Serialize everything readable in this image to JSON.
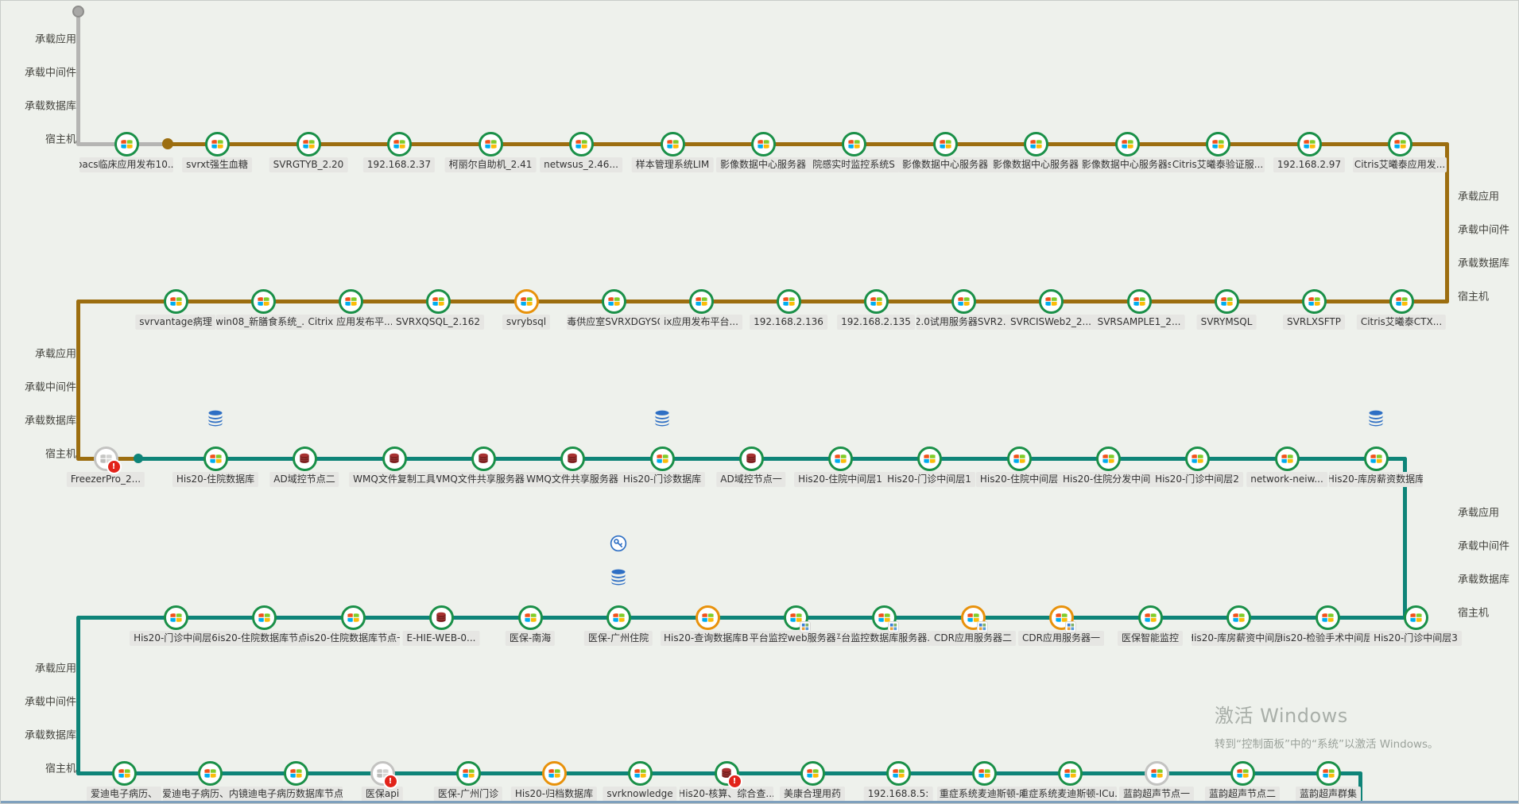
{
  "colors": {
    "bg": "#eef1ec",
    "brown": "#9c6e10",
    "teal": "#0e8478",
    "gray_line": "#b5b5b3",
    "green_ring": "#1a9048",
    "orange_ring": "#e8920c",
    "gray_ring": "#c3c3c1",
    "maroon_db": "#7d1d1d",
    "blue_icon": "#2e6fc4",
    "badge_red": "#e2231a",
    "chip_bg": "#e6e6e3",
    "chip_text": "#333333",
    "band_text": "#45453f",
    "watermark_text": "#a9afa9"
  },
  "band_labels": [
    "承载应用",
    "承载中间件",
    "承载数据库",
    "宿主机"
  ],
  "watermark": {
    "line1": "激活 Windows",
    "line2": "转到“控制面板”中的“系统”以激活 Windows。"
  },
  "rows": [
    {
      "name": "row-1",
      "line_color": "brown",
      "nodes": [
        {
          "label": "pacs临床应用发布10...",
          "icon": "windows",
          "ring": "green"
        },
        {
          "label": "svrxt强生血糖",
          "icon": "windows",
          "ring": "green"
        },
        {
          "label": "SVRGTYB_2.20",
          "icon": "windows",
          "ring": "green"
        },
        {
          "label": "192.168.2.37",
          "icon": "windows",
          "ring": "green"
        },
        {
          "label": "柯丽尔自助机_2.41",
          "icon": "windows",
          "ring": "green"
        },
        {
          "label": "netwsus_2.46...",
          "icon": "windows",
          "ring": "green"
        },
        {
          "label": "样本管理系统LIM",
          "icon": "windows",
          "ring": "green"
        },
        {
          "label": "影像数据中心服务器",
          "icon": "windows",
          "ring": "green"
        },
        {
          "label": "院感实时监控系统S",
          "icon": "windows",
          "ring": "green"
        },
        {
          "label": "影像数据中心服务器",
          "icon": "windows",
          "ring": "green"
        },
        {
          "label": "影像数据中心服务器",
          "icon": "windows",
          "ring": "green"
        },
        {
          "label": "影像数据中心服务器s",
          "icon": "windows",
          "ring": "green"
        },
        {
          "label": "Citris艾曦泰验证服...",
          "icon": "windows",
          "ring": "green"
        },
        {
          "label": "192.168.2.97",
          "icon": "windows",
          "ring": "green"
        },
        {
          "label": "Citris艾曦泰应用发...",
          "icon": "windows",
          "ring": "green"
        }
      ]
    },
    {
      "name": "row-2",
      "line_color": "brown",
      "nodes": [
        {
          "label": "svrvantage病理",
          "icon": "windows",
          "ring": "green"
        },
        {
          "label": "win08_新膳食系统_...",
          "icon": "windows",
          "ring": "green"
        },
        {
          "label": "Citrix 应用发布平...",
          "icon": "windows",
          "ring": "green"
        },
        {
          "label": "SVRXQSQL_2.162",
          "icon": "windows",
          "ring": "green"
        },
        {
          "label": "svrybsql",
          "icon": "windows",
          "ring": "orange"
        },
        {
          "label": "消毒供应室SVRXDGYSQL",
          "icon": "windows",
          "ring": "green"
        },
        {
          "label": "ix应用发布平台...",
          "icon": "windows",
          "ring": "green"
        },
        {
          "label": "192.168.2.136",
          "icon": "windows",
          "ring": "green"
        },
        {
          "label": "192.168.2.135",
          "icon": "windows",
          "ring": "green"
        },
        {
          "label": "2.0试用服务器SVR2...",
          "icon": "windows",
          "ring": "green"
        },
        {
          "label": "SVRCISWeb2_2...",
          "icon": "windows",
          "ring": "green"
        },
        {
          "label": "SVRSAMPLE1_2...",
          "icon": "windows",
          "ring": "green"
        },
        {
          "label": "SVRYMSQL",
          "icon": "windows",
          "ring": "green"
        },
        {
          "label": "SVRLXSFTP",
          "icon": "windows",
          "ring": "green"
        },
        {
          "label": "Citris艾曦泰CTX...",
          "icon": "windows",
          "ring": "green"
        }
      ]
    },
    {
      "name": "row-3",
      "line_color": "teal",
      "nodes": [
        {
          "label": "FreezerPro_2...",
          "icon": "windows-gray",
          "ring": "gray",
          "badge": true
        },
        {
          "label": "His20-住院数据库",
          "icon": "windows",
          "ring": "green",
          "above": [
            "database"
          ]
        },
        {
          "label": "AD域控节点二",
          "icon": "red-db",
          "ring": "green"
        },
        {
          "label": "WMQ文件复制工具",
          "icon": "red-db",
          "ring": "green"
        },
        {
          "label": "WMQ文件共享服务器（",
          "icon": "red-db",
          "ring": "green"
        },
        {
          "label": "WMQ文件共享服务器",
          "icon": "red-db",
          "ring": "green"
        },
        {
          "label": "His20-门诊数据库",
          "icon": "windows",
          "ring": "green",
          "above": [
            "database"
          ]
        },
        {
          "label": "AD域控节点一",
          "icon": "red-db",
          "ring": "green"
        },
        {
          "label": "His20-住院中间层1",
          "icon": "windows",
          "ring": "green"
        },
        {
          "label": "His20-门诊中间层1",
          "icon": "windows",
          "ring": "green"
        },
        {
          "label": "His20-住院中间层",
          "icon": "windows",
          "ring": "green"
        },
        {
          "label": "His20-住院分发中间.",
          "icon": "windows",
          "ring": "green"
        },
        {
          "label": "His20-门诊中间层2",
          "icon": "windows",
          "ring": "green"
        },
        {
          "label": "network-neiw...",
          "icon": "windows",
          "ring": "green"
        },
        {
          "label": "His20-库房薪资数据库",
          "icon": "windows",
          "ring": "green",
          "above": [
            "database"
          ]
        }
      ]
    },
    {
      "name": "row-4",
      "line_color": "teal",
      "nodes": [
        {
          "label": "His20-门诊中间层6",
          "icon": "windows",
          "ring": "green"
        },
        {
          "label": "His20-住院数据库节点二",
          "icon": "windows",
          "ring": "green"
        },
        {
          "label": "His20-住院数据库节点一",
          "icon": "windows",
          "ring": "green"
        },
        {
          "label": "E-HIE-WEB-0...",
          "icon": "red-db",
          "ring": "green"
        },
        {
          "label": "医保-南海",
          "icon": "windows",
          "ring": "green"
        },
        {
          "label": "医保-广州住院",
          "icon": "windows",
          "ring": "green",
          "above": [
            "key",
            "database"
          ]
        },
        {
          "label": "His20-查询数据库BI",
          "icon": "windows",
          "ring": "orange"
        },
        {
          "label": "平台监控web服务器1",
          "icon": "windows",
          "ring": "green",
          "overlay": true
        },
        {
          "label": "平台监控数据库服务器...",
          "icon": "windows",
          "ring": "green",
          "overlay": true
        },
        {
          "label": "CDR应用服务器二",
          "icon": "windows",
          "ring": "orange",
          "overlay": true
        },
        {
          "label": "CDR应用服务器一",
          "icon": "windows",
          "ring": "orange",
          "overlay": true
        },
        {
          "label": "医保智能监控",
          "icon": "windows",
          "ring": "green"
        },
        {
          "label": "His20-库房薪资中间层1",
          "icon": "windows",
          "ring": "green"
        },
        {
          "label": "His20-检验手术中间层1",
          "icon": "windows",
          "ring": "green"
        },
        {
          "label": "His20-门诊中间层3",
          "icon": "windows",
          "ring": "green"
        }
      ]
    },
    {
      "name": "row-5",
      "line_color": "teal",
      "nodes": [
        {
          "label": "爱迪电子病历、",
          "icon": "windows",
          "ring": "green"
        },
        {
          "label": "爱迪电子病历、内镜数",
          "icon": "windows",
          "ring": "green"
        },
        {
          "label": "爱迪电子病历数据库节点二",
          "icon": "windows",
          "ring": "green"
        },
        {
          "label": "医保api",
          "icon": "windows-gray",
          "ring": "gray",
          "badge": true
        },
        {
          "label": "医保-广州门诊",
          "icon": "windows",
          "ring": "green"
        },
        {
          "label": "His20-归档数据库",
          "icon": "windows",
          "ring": "orange"
        },
        {
          "label": "svrknowledge",
          "icon": "windows",
          "ring": "green"
        },
        {
          "label": "His20-核算、综合查...",
          "icon": "red-db",
          "ring": "green",
          "badge": true
        },
        {
          "label": "美康合理用药",
          "icon": "windows",
          "ring": "green"
        },
        {
          "label": "192.168.8.5:",
          "icon": "windows",
          "ring": "green"
        },
        {
          "label": "重症系统麦迪斯顿-麻",
          "icon": "windows",
          "ring": "green"
        },
        {
          "label": "重症系统麦迪斯顿-ICu..",
          "icon": "windows",
          "ring": "green"
        },
        {
          "label": "蓝韵超声节点一",
          "icon": "windows",
          "ring": "gray"
        },
        {
          "label": "蓝韵超声节点二",
          "icon": "windows",
          "ring": "green"
        },
        {
          "label": "蓝韵超声群集",
          "icon": "windows",
          "ring": "green"
        }
      ]
    }
  ]
}
